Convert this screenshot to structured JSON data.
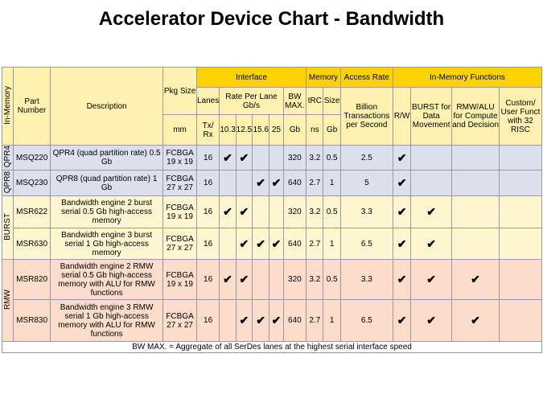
{
  "title": "Accelerator Device Chart - Bandwidth",
  "headers": {
    "category": "In-Memory",
    "part_number": "Part Number",
    "description": "Description",
    "pkg_size": "Pkg Size",
    "interface": "Interface",
    "memory": "Memory",
    "access_rate": "Access Rate",
    "in_memory_functions": "In-Memory Functions",
    "lanes": "Lanes",
    "rate_per_lane": "Rate Per Lane Gb/s",
    "bw_max": "BW MAX.",
    "trc": "tRC",
    "size": "Size",
    "billion_trans": "Billion Transactions per Second",
    "rw": "R/W",
    "burst": "BURST for Data Movement",
    "rmw_alu": "RMW/ALU for Compute and Decision",
    "custom": "Custom/ User Funct with 32 RISC"
  },
  "units": {
    "mm": "mm",
    "txrx": "Tx/ Rx",
    "r1": "10.3",
    "r2": "12.5",
    "r3": "15.6",
    "r4": "25",
    "gb": "Gb",
    "ns": "ns",
    "gb2": "Gb"
  },
  "groups": [
    {
      "label": "QPR4"
    },
    {
      "label": "QPR8"
    },
    {
      "label": "BURST"
    },
    {
      "label": "RMW"
    }
  ],
  "check_mark": "✔",
  "rows": [
    {
      "part": "MSQ220",
      "desc": "QPR4  (quad partition rate) 0.5 Gb",
      "pkg": "FCBGA 19 x 19",
      "lanes": "16",
      "r1": true,
      "r2": true,
      "r3": false,
      "r4": false,
      "bw": "320",
      "trc": "3.2",
      "size": "0.5",
      "bts": "2.5",
      "rw": true,
      "burst": false,
      "rmw": false,
      "custom": false
    },
    {
      "part": "MSQ230",
      "desc": "QPR8  (quad partition rate) 1 Gb",
      "pkg": "FCBGA 27 x 27",
      "lanes": "16",
      "r1": false,
      "r2": false,
      "r3": true,
      "r4": true,
      "bw": "640",
      "trc": "2.7",
      "size": "1",
      "bts": "5",
      "rw": true,
      "burst": false,
      "rmw": false,
      "custom": false
    },
    {
      "part": "MSR622",
      "desc": "Bandwidth engine 2 burst serial 0.5 Gb high-access memory",
      "pkg": "FCBGA 19 x 19",
      "lanes": "16",
      "r1": true,
      "r2": true,
      "r3": false,
      "r4": false,
      "bw": "320",
      "trc": "3.2",
      "size": "0.5",
      "bts": "3.3",
      "rw": true,
      "burst": true,
      "rmw": false,
      "custom": false
    },
    {
      "part": "MSR630",
      "desc": "Bandwidth engine 3 burst serial 1 Gb high-access memory",
      "pkg": "FCBGA 27 x 27",
      "lanes": "16",
      "r1": false,
      "r2": true,
      "r3": true,
      "r4": true,
      "bw": "640",
      "trc": "2.7",
      "size": "1",
      "bts": "6.5",
      "rw": true,
      "burst": true,
      "rmw": false,
      "custom": false
    },
    {
      "part": "MSR820",
      "desc": "Bandwidth engine 2 RMW serial 0.5 Gb high-access memory with ALU for RMW functions",
      "pkg": "FCBGA 19 x 19",
      "lanes": "16",
      "r1": true,
      "r2": true,
      "r3": false,
      "r4": false,
      "bw": "320",
      "trc": "3.2",
      "size": "0.5",
      "bts": "3.3",
      "rw": true,
      "burst": true,
      "rmw": true,
      "custom": false
    },
    {
      "part": "MSR830",
      "desc": "Bandwidth engine 3 RMW serial 1 Gb high-access memory with ALU for RMW functions",
      "pkg": "FCBGA 27 x 27",
      "lanes": "16",
      "r1": false,
      "r2": true,
      "r3": true,
      "r4": true,
      "bw": "640",
      "trc": "2.7",
      "size": "1",
      "bts": "6.5",
      "rw": true,
      "burst": true,
      "rmw": true,
      "custom": false
    }
  ],
  "footnote": "BW MAX. = Aggregate of all SerDes lanes at the highest serial interface speed"
}
